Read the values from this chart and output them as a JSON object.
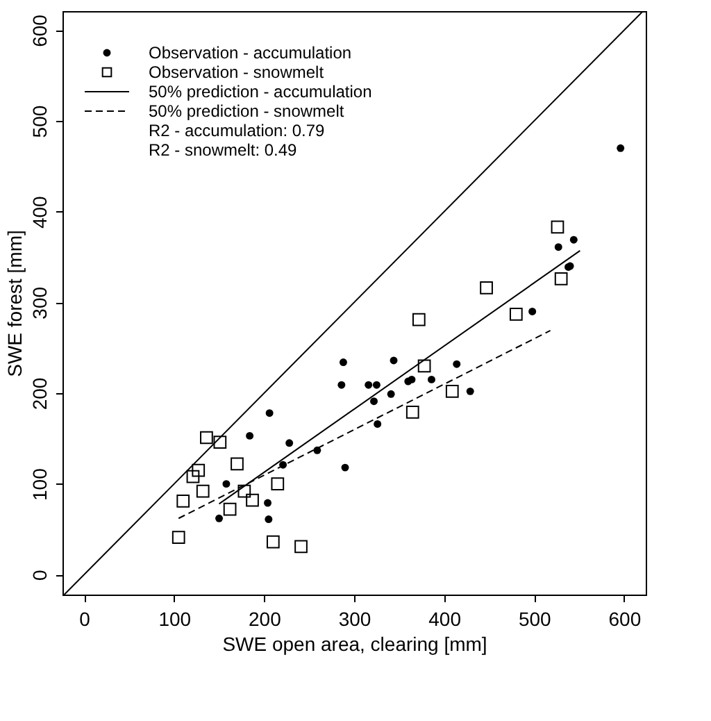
{
  "chart_data": {
    "type": "scatter",
    "xlabel": "SWE open area, clearing [mm]",
    "ylabel": "SWE forest [mm]",
    "xlim": [
      -24,
      624
    ],
    "ylim": [
      -22,
      621
    ],
    "xticks": [
      0,
      100,
      200,
      300,
      400,
      500,
      600
    ],
    "yticks": [
      0,
      100,
      200,
      300,
      400,
      500,
      600
    ],
    "grid": false,
    "legend": "top left",
    "annotations": [
      "R2 - accumulation: 0.79",
      "R2 - snowmelt: 0.49"
    ],
    "series": [
      {
        "name": "Observation - accumulation",
        "type": "scatter",
        "marker": "circle",
        "color": "#000000",
        "x": [
          206,
          184,
          228,
          259,
          221,
          158,
          204,
          150,
          205,
          544,
          527,
          538,
          540,
          498,
          288,
          286,
          316,
          325,
          344,
          322,
          341,
          360,
          364,
          386,
          414,
          429,
          326,
          290,
          596
        ],
        "values": [
          178,
          153,
          145,
          137,
          121,
          100,
          79,
          62,
          61,
          369,
          361,
          339,
          340,
          290,
          234,
          209,
          209,
          209,
          236,
          191,
          199,
          213,
          215,
          215,
          232,
          202,
          166,
          118,
          470
        ]
      },
      {
        "name": "Observation - snowmelt",
        "type": "scatter",
        "marker": "square",
        "color": "#000000",
        "x": [
          136,
          151,
          170,
          127,
          121,
          132,
          110,
          178,
          187,
          162,
          215,
          105,
          210,
          241,
          526,
          530,
          447,
          480,
          372,
          378,
          409,
          365
        ],
        "values": [
          151,
          146,
          122,
          115,
          108,
          92,
          81,
          92,
          82,
          72,
          100,
          41,
          36,
          31,
          383,
          326,
          316,
          287,
          281,
          230,
          202,
          179
        ]
      },
      {
        "name": "50% prediction - accumulation",
        "type": "line",
        "line_style": "solid",
        "marker": "none",
        "color": "#000000",
        "x": [
          150,
          551
        ],
        "values": [
          78,
          357
        ]
      },
      {
        "name": "50% prediction - snowmelt",
        "type": "line",
        "line_style": "dashed",
        "marker": "none",
        "color": "#000000",
        "x": [
          105,
          518
        ],
        "values": [
          62,
          269
        ]
      },
      {
        "type": "line",
        "line_style": "solid",
        "marker": "none",
        "color": "#000000",
        "x": [
          -22,
          621
        ],
        "values": [
          -22,
          621
        ]
      }
    ]
  }
}
